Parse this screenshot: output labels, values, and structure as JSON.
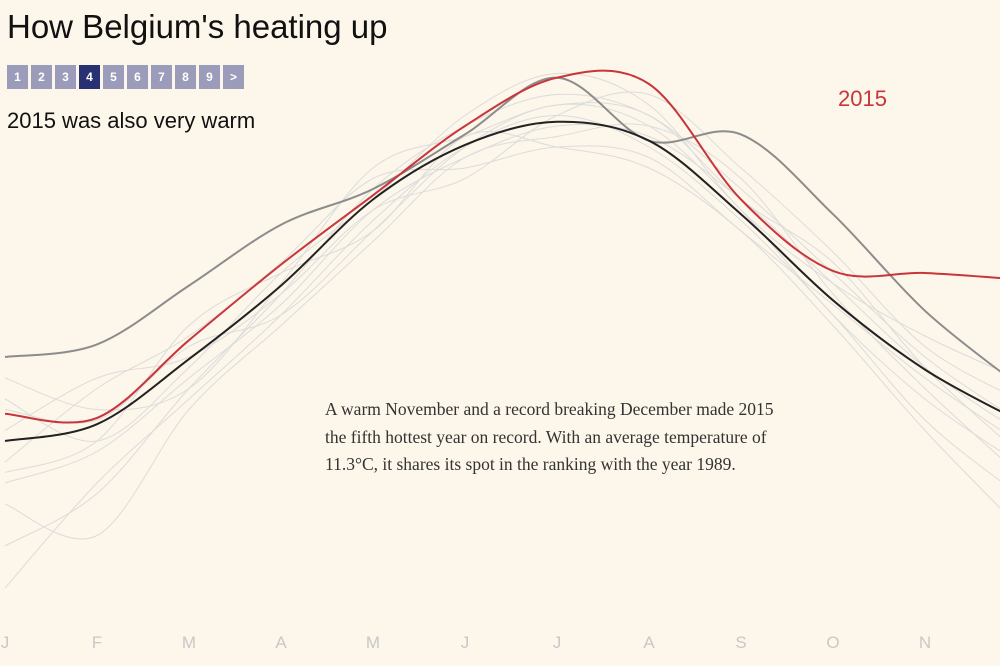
{
  "chart_data": {
    "type": "line",
    "title": "How Belgium's heating up",
    "subtitle": "2015 was also very warm",
    "pager": [
      "1",
      "2",
      "3",
      "4",
      "5",
      "6",
      "7",
      "8",
      "9",
      ">"
    ],
    "pager_active": 3,
    "annotation": "A warm November and a record breaking December made 2015 the fifth hottest year on record. With an average temperature of 11.3°C, it shares its spot in the ranking with the year 1989.",
    "categories": [
      "J",
      "F",
      "M",
      "A",
      "M",
      "J",
      "J",
      "A",
      "S",
      "O",
      "N",
      null
    ],
    "ylim": [
      -6,
      24
    ],
    "background_color": "#dcdcdc",
    "background_series": [
      [
        1.0,
        2.5,
        6.0,
        9.5,
        14.0,
        16.5,
        18.0,
        17.5,
        14.5,
        10.5,
        6.5,
        3.5
      ],
      [
        4.5,
        4.0,
        7.5,
        9.0,
        13.0,
        17.0,
        19.0,
        18.0,
        14.0,
        9.0,
        5.0,
        2.0
      ],
      [
        -2.0,
        0.5,
        5.5,
        10.0,
        15.0,
        18.0,
        19.5,
        18.5,
        15.0,
        11.0,
        7.0,
        4.0
      ],
      [
        2.0,
        5.5,
        8.0,
        11.5,
        15.5,
        16.0,
        17.0,
        16.5,
        13.0,
        9.5,
        6.0,
        3.0
      ],
      [
        0.0,
        -1.5,
        4.5,
        8.5,
        12.5,
        16.5,
        17.5,
        18.0,
        15.5,
        10.0,
        5.5,
        1.5
      ],
      [
        5.0,
        3.0,
        6.5,
        11.0,
        14.5,
        18.5,
        20.5,
        19.0,
        14.0,
        10.5,
        8.0,
        6.0
      ],
      [
        -4.0,
        1.0,
        5.0,
        9.0,
        13.5,
        17.0,
        18.5,
        17.0,
        13.5,
        9.0,
        4.0,
        0.5
      ],
      [
        3.5,
        6.0,
        7.0,
        10.0,
        14.0,
        15.5,
        18.5,
        19.5,
        16.0,
        12.0,
        7.5,
        5.0
      ],
      [
        1.5,
        3.0,
        8.5,
        11.0,
        13.0,
        17.5,
        17.0,
        16.0,
        13.0,
        8.5,
        3.5,
        -1.0
      ],
      [
        6.0,
        4.5,
        5.5,
        10.5,
        16.0,
        17.5,
        19.0,
        18.5,
        14.5,
        11.5,
        6.5,
        2.5
      ]
    ],
    "series": [
      {
        "color": "#8c8c8c",
        "values": [
          7.0,
          7.6,
          10.4,
          13.3,
          15.0,
          17.6,
          20.3,
          17.3,
          17.6,
          13.8,
          9.2,
          5.7
        ]
      },
      {
        "color": "#222222",
        "values": [
          3.0,
          3.8,
          6.9,
          10.4,
          14.5,
          17.1,
          18.2,
          17.3,
          13.8,
          9.7,
          6.4,
          4.0
        ]
      },
      {
        "name": "2015",
        "color": "#c8363b",
        "values": [
          4.3,
          4.1,
          7.8,
          11.4,
          14.7,
          18.0,
          20.3,
          20.0,
          14.5,
          11.1,
          11.0,
          10.7
        ]
      }
    ]
  }
}
